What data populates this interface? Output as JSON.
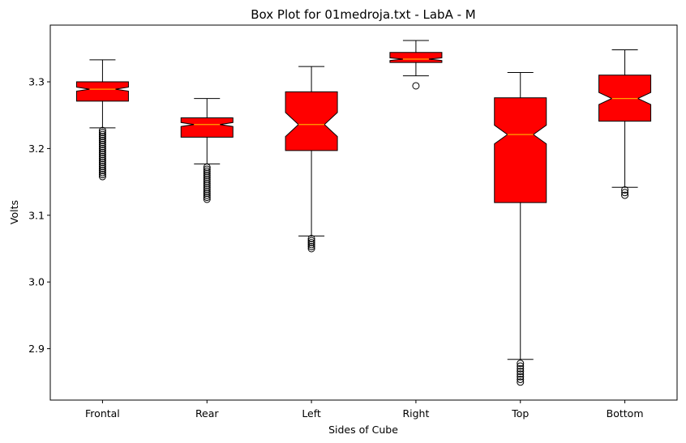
{
  "chart_data": {
    "type": "box",
    "title": "Box Plot for 01medroja.txt - LabA - M",
    "xlabel": "Sides of Cube",
    "ylabel": "Volts",
    "ylim": [
      2.823,
      3.385
    ],
    "yticks": [
      2.9,
      3.0,
      3.1,
      3.2,
      3.3
    ],
    "ytick_labels": [
      "2.9",
      "3.0",
      "3.1",
      "3.2",
      "3.3"
    ],
    "notched": true,
    "grid": false,
    "colors": {
      "box_fill": "#ff0000",
      "median_line": "#ffa500",
      "edge": "#000000"
    },
    "categories": [
      "Frontal",
      "Rear",
      "Left",
      "Right",
      "Top",
      "Bottom"
    ],
    "boxes": [
      {
        "name": "Frontal",
        "whisker_low": 3.231,
        "q1": 3.271,
        "median": 3.289,
        "q3": 3.3,
        "whisker_high": 3.333,
        "notch_low": 3.286,
        "notch_high": 3.292,
        "outliers": [
          3.227,
          3.224,
          3.221,
          3.218,
          3.215,
          3.212,
          3.209,
          3.206,
          3.203,
          3.2,
          3.197,
          3.194,
          3.191,
          3.188,
          3.185,
          3.182,
          3.179,
          3.176,
          3.173,
          3.17,
          3.167,
          3.164,
          3.161,
          3.158
        ]
      },
      {
        "name": "Rear",
        "whisker_low": 3.177,
        "q1": 3.217,
        "median": 3.236,
        "q3": 3.246,
        "whisker_high": 3.275,
        "notch_low": 3.233,
        "notch_high": 3.239,
        "outliers": [
          3.172,
          3.169,
          3.166,
          3.163,
          3.16,
          3.157,
          3.154,
          3.151,
          3.148,
          3.145,
          3.142,
          3.139,
          3.136,
          3.133,
          3.13,
          3.127,
          3.124
        ]
      },
      {
        "name": "Left",
        "whisker_low": 3.069,
        "q1": 3.197,
        "median": 3.236,
        "q3": 3.285,
        "whisker_high": 3.323,
        "notch_low": 3.218,
        "notch_high": 3.254,
        "outliers": [
          3.065,
          3.062,
          3.059,
          3.056,
          3.053,
          3.05
        ]
      },
      {
        "name": "Right",
        "whisker_low": 3.309,
        "q1": 3.329,
        "median": 3.334,
        "q3": 3.344,
        "whisker_high": 3.362,
        "notch_low": 3.332,
        "notch_high": 3.336,
        "outliers": [
          3.294
        ]
      },
      {
        "name": "Top",
        "whisker_low": 2.884,
        "q1": 3.119,
        "median": 3.221,
        "q3": 3.276,
        "whisker_high": 3.314,
        "notch_low": 3.207,
        "notch_high": 3.235,
        "outliers": [
          2.878,
          2.874,
          2.87,
          2.866,
          2.862,
          2.858,
          2.854,
          2.85
        ]
      },
      {
        "name": "Bottom",
        "whisker_low": 3.142,
        "q1": 3.241,
        "median": 3.275,
        "q3": 3.31,
        "whisker_high": 3.348,
        "notch_low": 3.266,
        "notch_high": 3.284,
        "outliers": [
          3.138,
          3.134,
          3.13
        ]
      }
    ]
  }
}
